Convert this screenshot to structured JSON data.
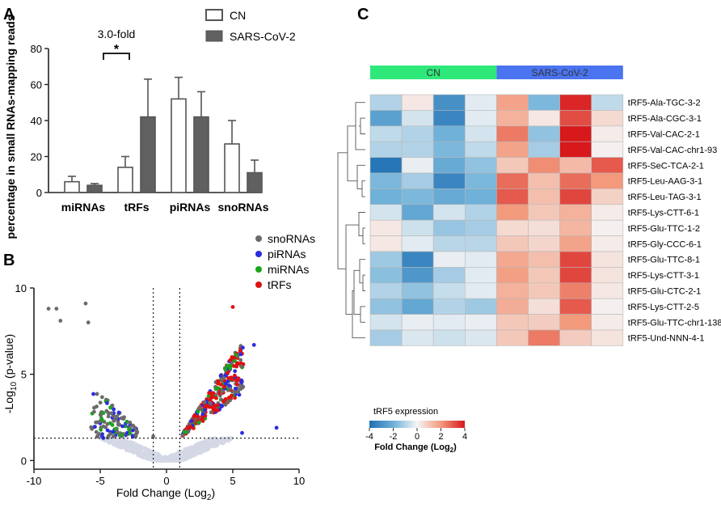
{
  "chart_data": [
    {
      "panel": "A",
      "type": "bar",
      "ylabel": "percentage in small RNAs-mapping reads",
      "ylim": [
        0,
        80
      ],
      "yticks": [
        0,
        20,
        40,
        60,
        80
      ],
      "categories": [
        "miRNAs",
        "tRFs",
        "piRNAs",
        "snoRNAs"
      ],
      "series": [
        {
          "name": "CN",
          "fill": "#ffffff",
          "values": [
            6,
            14,
            52,
            27
          ],
          "errors": [
            3,
            6,
            12,
            13
          ]
        },
        {
          "name": "SARS-CoV-2",
          "fill": "#606060",
          "values": [
            4,
            42,
            42,
            11
          ],
          "errors": [
            1,
            21,
            14,
            7
          ]
        }
      ],
      "annotation": {
        "text": "3.0-fold",
        "star": "*"
      }
    },
    {
      "panel": "B",
      "type": "scatter",
      "xlabel": "Fold Change (Log",
      "xlabel_sub": "2",
      "xlabel_end": ")",
      "ylabel_pre": "-Log",
      "ylabel_sub": "10",
      "ylabel_post": " (p-value)",
      "xlim": [
        -10,
        10
      ],
      "ylim": [
        -0.5,
        10
      ],
      "xticks": [
        -10,
        -5,
        0,
        5,
        10
      ],
      "yticks": [
        0,
        5,
        10
      ],
      "thresholds": {
        "fold_change": [
          -1,
          1
        ],
        "neg_log_p": 1.3
      },
      "legend": [
        {
          "name": "snoRNAs",
          "color": "#6b6b6b"
        },
        {
          "name": "piRNAs",
          "color": "#2c2ce0"
        },
        {
          "name": "miRNAs",
          "color": "#1aa51a"
        },
        {
          "name": "tRFs",
          "color": "#e01010"
        }
      ]
    },
    {
      "panel": "C",
      "type": "heatmap",
      "groups": [
        {
          "name": "CN",
          "color": "#2ee87a"
        },
        {
          "name": "SARS-CoV-2",
          "color": "#4a74f0"
        }
      ],
      "rows": [
        "tRF5-Ala-TGC-3-2",
        "tRF5-Ala-CGC-3-1",
        "tRF5-Val-CAC-2-1",
        "tRF5-Val-CAC-chr1-93",
        "tRF5-SeC-TCA-2-1",
        "tRF5-Leu-AAG-3-1",
        "tRF5-Leu-TAG-3-1",
        "tRF5-Lys-CTT-6-1",
        "tRF5-Glu-TTC-1-2",
        "tRF5-Gly-CCC-6-1",
        "tRF5-Glu-TTC-8-1",
        "tRF5-Lys-CTT-3-1",
        "tRF5-Glu-CTC-2-1",
        "tRF5-Lys-CTT-2-5",
        "tRF5-Glu-TTC-chr1-138",
        "tRF5-Und-NNN-4-1"
      ],
      "values": [
        [
          -1.0,
          0.3,
          -3.0,
          -0.3,
          1.8,
          -1.8,
          3.8,
          -0.8
        ],
        [
          -2.5,
          -0.5,
          -3.3,
          -0.3,
          1.5,
          0.3,
          3.2,
          0.6
        ],
        [
          -0.8,
          -1.0,
          -2.0,
          -0.5,
          2.5,
          -1.5,
          4.0,
          0.2
        ],
        [
          -1.0,
          -1.0,
          -1.8,
          -0.8,
          1.8,
          -1.2,
          4.0,
          0.1
        ],
        [
          -3.8,
          -0.2,
          -2.2,
          -1.5,
          1.0,
          2.2,
          1.3,
          3.0
        ],
        [
          -1.8,
          -1.2,
          -3.3,
          -1.8,
          2.7,
          1.2,
          2.7,
          2.0
        ],
        [
          -2.0,
          -1.8,
          -2.2,
          -2.0,
          3.0,
          1.2,
          3.3,
          0.8
        ],
        [
          -0.5,
          -2.3,
          -0.5,
          -1.0,
          2.0,
          1.0,
          1.5,
          0.2
        ],
        [
          0.3,
          -0.6,
          -1.4,
          -1.2,
          0.6,
          0.5,
          1.4,
          0.1
        ],
        [
          0.3,
          -0.3,
          -0.9,
          -0.9,
          1.0,
          0.7,
          1.8,
          0.2
        ],
        [
          -1.3,
          -3.3,
          -0.2,
          -0.3,
          1.7,
          1.2,
          3.3,
          0.4
        ],
        [
          -1.6,
          -2.8,
          -1.2,
          -0.3,
          1.9,
          1.0,
          3.3,
          0.4
        ],
        [
          -1.0,
          -1.5,
          -0.7,
          -0.3,
          1.5,
          1.0,
          2.4,
          0.3
        ],
        [
          -1.5,
          -2.3,
          -1.0,
          -1.3,
          1.6,
          0.5,
          3.0,
          0.1
        ],
        [
          -0.5,
          -0.2,
          -0.3,
          -0.2,
          1.0,
          0.9,
          2.0,
          0.2
        ],
        [
          -1.2,
          -0.4,
          -0.6,
          -0.4,
          1.0,
          2.5,
          0.9,
          0.4
        ]
      ],
      "colorbar": {
        "title": "tRF5 expression",
        "ticks": [
          -4,
          -2,
          0,
          2,
          4
        ],
        "label": "Fold Change (Log",
        "label_sub": "2",
        "label_end": ")"
      }
    }
  ],
  "panel_labels": {
    "a": "A",
    "b": "B",
    "c": "C"
  }
}
